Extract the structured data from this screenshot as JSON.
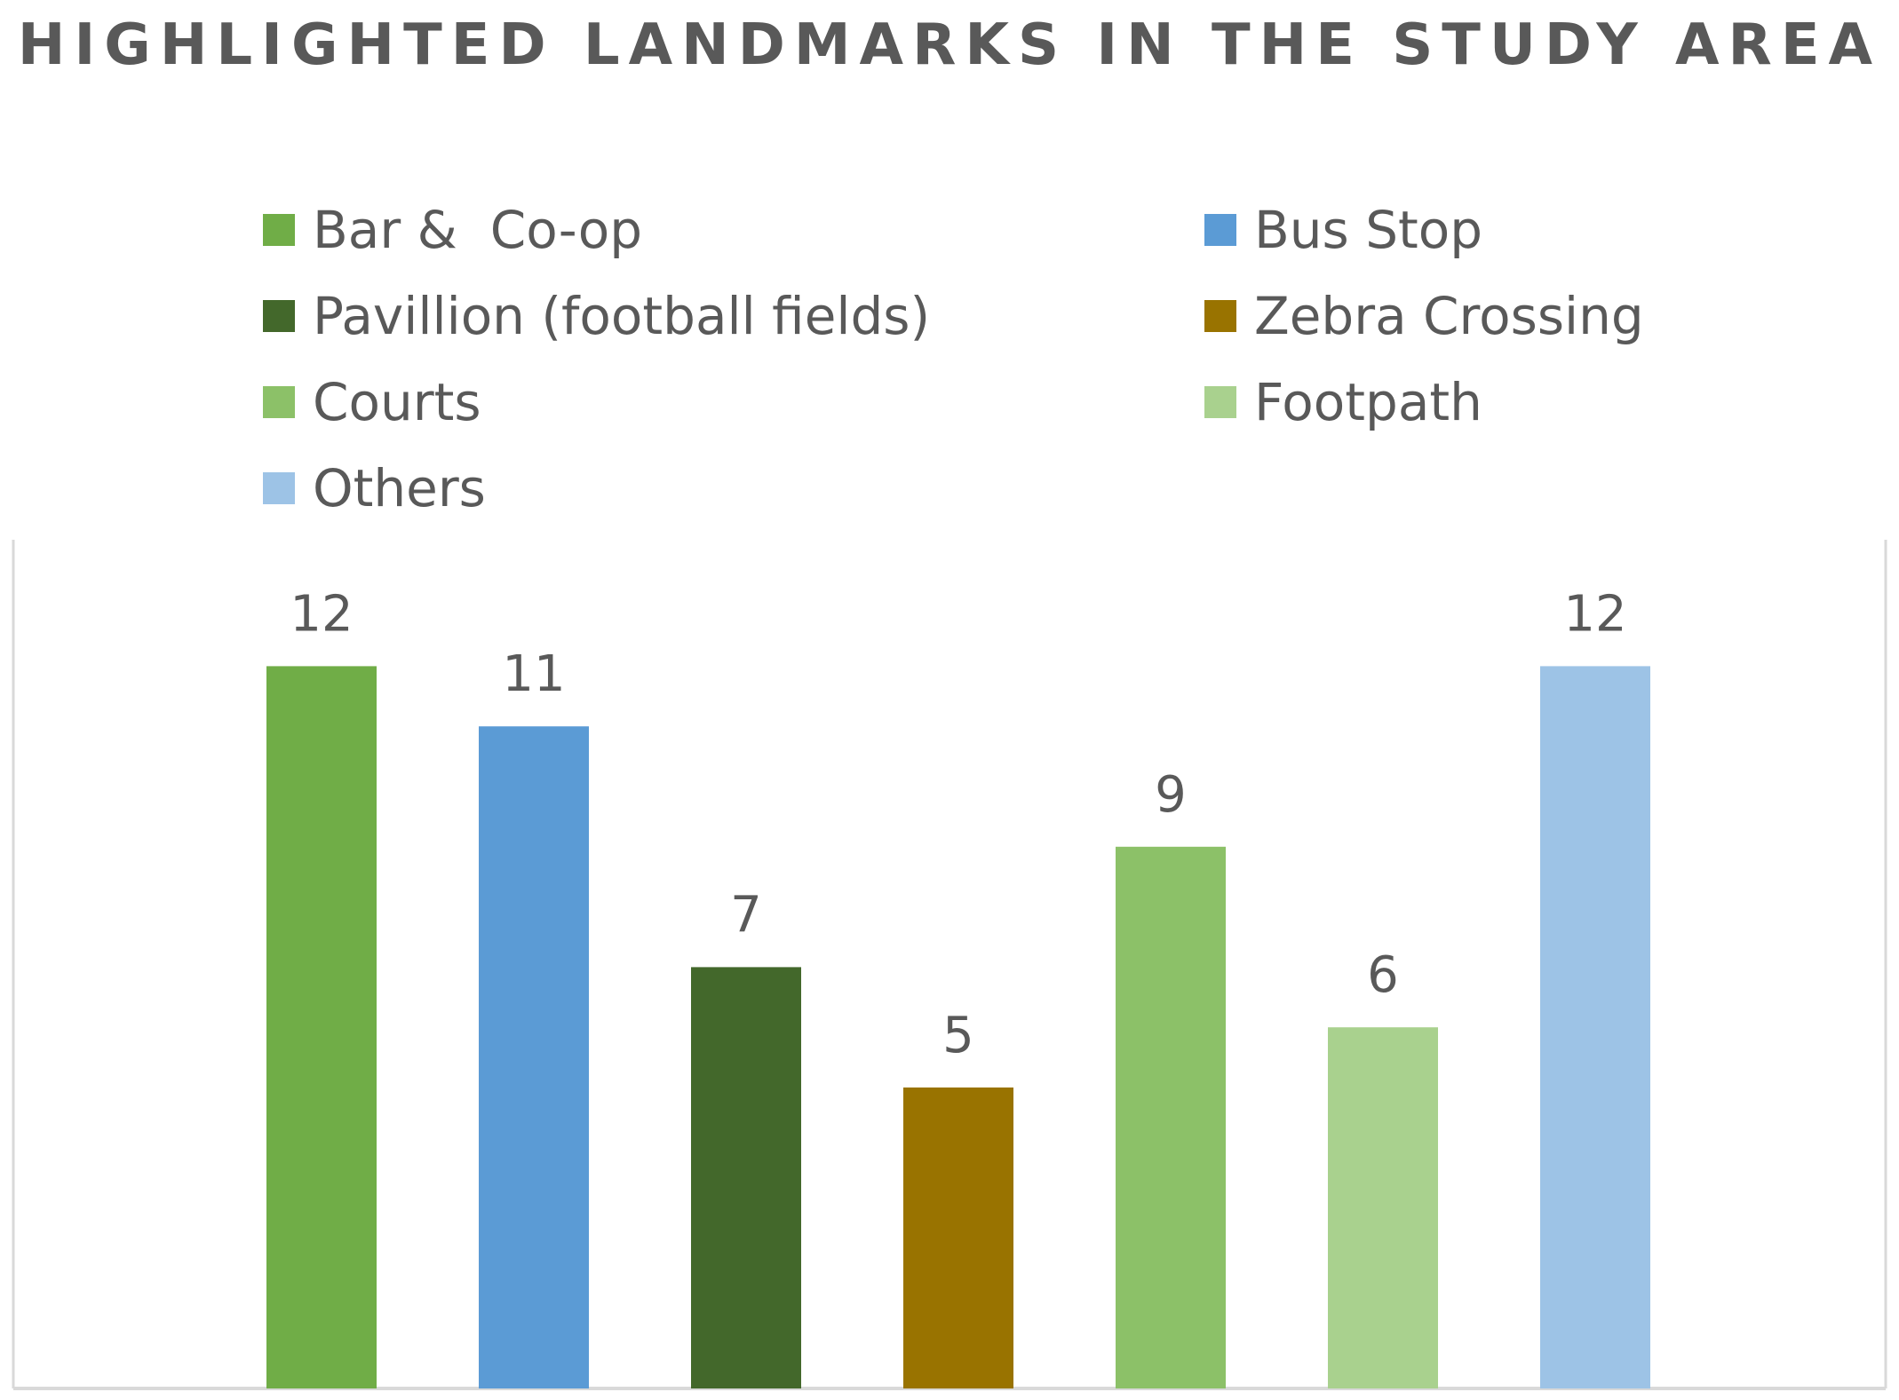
{
  "chart_data": {
    "type": "bar",
    "title": "HIGHLIGHTED LANDMARKS IN THE STUDY AREA",
    "categories": [
      "Bar &  Co-op",
      "Bus Stop",
      "Pavillion (football fields)",
      "Zebra Crossing",
      "Courts",
      "Footpath",
      "Others"
    ],
    "values": [
      12,
      11,
      7,
      5,
      9,
      6,
      12
    ],
    "colors": [
      "#70ad47",
      "#5b9bd5",
      "#43682b",
      "#997300",
      "#8cc168",
      "#a9d18e",
      "#9dc3e6"
    ],
    "xlabel": "",
    "ylabel": "",
    "ylim": [
      0,
      12
    ],
    "grid": false,
    "legend_position": "top",
    "data_labels": true
  }
}
